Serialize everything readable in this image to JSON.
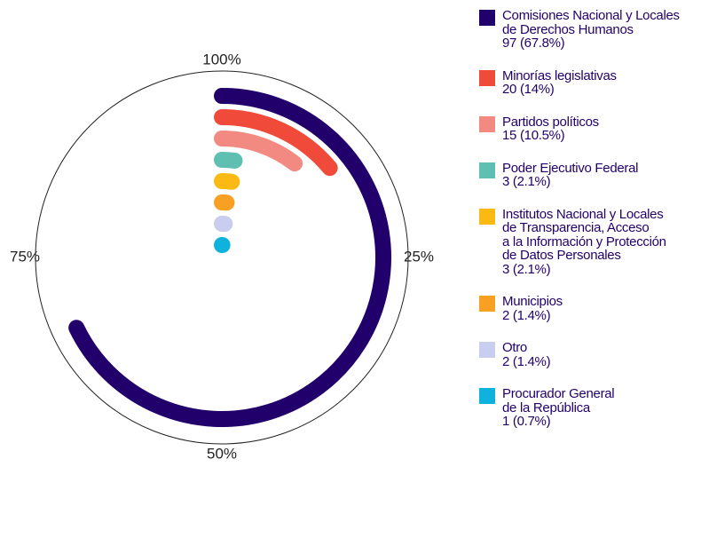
{
  "chart_data": {
    "type": "radial-bar",
    "categories": [
      "Comisiones Nacional  y Locales\nde Derechos Humanos",
      "Minorías legislativas",
      "Partidos políticos",
      "Poder Ejecutivo Federal",
      "Institutos Nacional y Locales\nde Transparencia, Acceso\na la Información y Protección\nde Datos Personales",
      "Municipios",
      "Otro",
      "Procurador General\nde la República"
    ],
    "values": [
      97,
      20,
      15,
      3,
      3,
      2,
      2,
      1
    ],
    "value_labels": [
      "97  (67.8%)",
      "20  (14%)",
      "15  (10.5%)",
      "3  (2.1%)",
      "3  (2.1%)",
      "2  (1.4%)",
      "2  (1.4%)",
      "1  (0.7%)"
    ],
    "colors": [
      "#22006b",
      "#f04a3a",
      "#f28a82",
      "#5fbfb0",
      "#fbb913",
      "#f7a024",
      "#c9cdf0",
      "#0fb2dc"
    ],
    "xlim": [
      0,
      100
    ],
    "xticks": [
      {
        "value": 100,
        "label": "100%"
      },
      {
        "value": 25,
        "label": "25%"
      },
      {
        "value": 50,
        "label": "50%"
      },
      {
        "value": 75,
        "label": "75%"
      }
    ]
  }
}
